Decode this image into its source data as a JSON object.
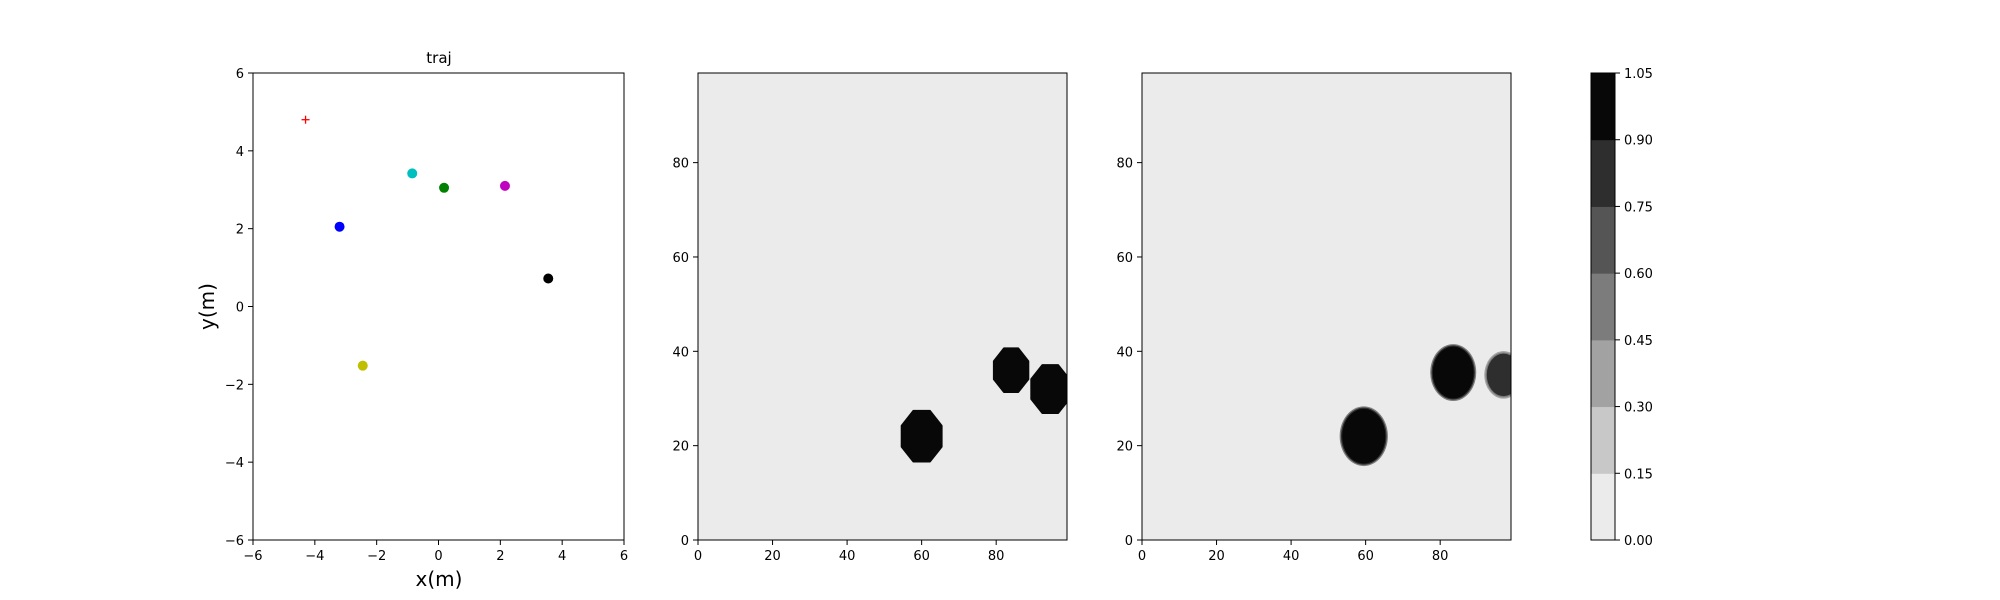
{
  "chart_data": [
    {
      "type": "scatter",
      "title": "traj",
      "xlabel": "x(m)",
      "ylabel": "y(m)",
      "xlim": [
        -6,
        6
      ],
      "ylim": [
        -6,
        6
      ],
      "xticks": [
        -6,
        -4,
        -2,
        0,
        2,
        4,
        6
      ],
      "yticks": [
        -6,
        -4,
        -2,
        0,
        2,
        4,
        6
      ],
      "grid": false,
      "points": [
        {
          "x": -4.3,
          "y": 4.8,
          "marker": "plus",
          "color": "#ff0000"
        },
        {
          "x": -3.2,
          "y": 2.05,
          "marker": "circle",
          "color": "#0000ff"
        },
        {
          "x": -0.85,
          "y": 3.42,
          "marker": "circle",
          "color": "#00bfbf"
        },
        {
          "x": 0.18,
          "y": 3.05,
          "marker": "circle",
          "color": "#008000"
        },
        {
          "x": 2.15,
          "y": 3.1,
          "marker": "circle",
          "color": "#bf00bf"
        },
        {
          "x": 3.55,
          "y": 0.72,
          "marker": "circle",
          "color": "#000000"
        },
        {
          "x": -2.45,
          "y": -1.52,
          "marker": "circle",
          "color": "#bfbf00"
        }
      ]
    },
    {
      "type": "heatmap",
      "title": "",
      "xlim": [
        0,
        99
      ],
      "ylim": [
        0,
        99
      ],
      "xticks": [
        0,
        20,
        40,
        60,
        80
      ],
      "yticks": [
        0,
        20,
        40,
        60,
        80
      ],
      "background_value": 0.05,
      "blobs": [
        {
          "cx": 60,
          "cy": 22,
          "r": 5.8,
          "value": 1.0,
          "soft": false
        },
        {
          "cx": 84,
          "cy": 36,
          "r": 5.0,
          "value": 1.0,
          "soft": false
        },
        {
          "cx": 94.5,
          "cy": 32,
          "r": 5.5,
          "value": 1.0,
          "soft": false
        }
      ]
    },
    {
      "type": "heatmap",
      "title": "",
      "xlim": [
        0,
        99
      ],
      "ylim": [
        0,
        99
      ],
      "xticks": [
        0,
        20,
        40,
        60,
        80
      ],
      "yticks": [
        0,
        20,
        40,
        60,
        80
      ],
      "background_value": 0.05,
      "blobs": [
        {
          "cx": 59.5,
          "cy": 22,
          "r": 5.8,
          "value": 1.0,
          "soft": true
        },
        {
          "cx": 83.5,
          "cy": 35.5,
          "r": 5.5,
          "value": 1.0,
          "soft": true
        },
        {
          "cx": 97,
          "cy": 35,
          "r": 4.5,
          "value": 0.75,
          "soft": true
        }
      ]
    }
  ],
  "colorbar": {
    "ticks": [
      "0.00",
      "0.15",
      "0.30",
      "0.45",
      "0.60",
      "0.75",
      "0.90",
      "1.05"
    ],
    "levels": [
      "#ebebeb",
      "#c8c8c8",
      "#a2a2a2",
      "#7c7c7c",
      "#555555",
      "#2e2e2e",
      "#080808"
    ]
  }
}
